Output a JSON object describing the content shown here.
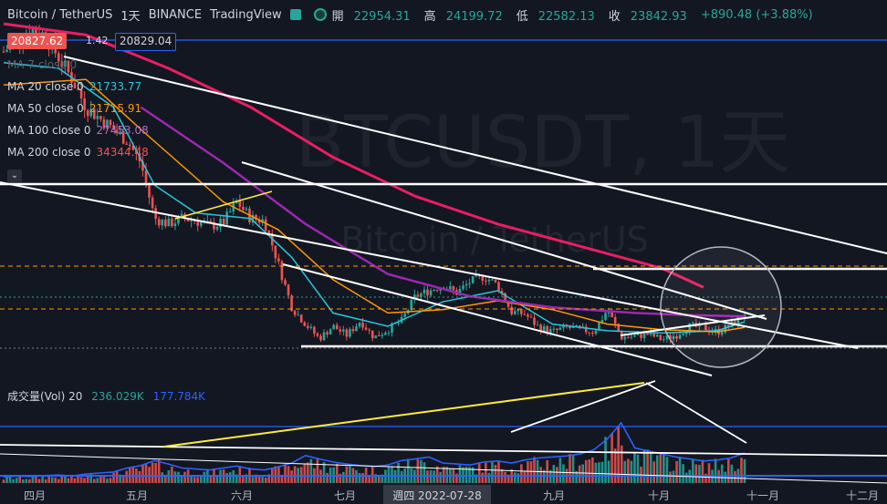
{
  "header": {
    "symbol": "Bitcoin / TetherUS",
    "interval": "1天",
    "exchange": "BINANCE",
    "platform": "TradingView",
    "open_label": "開",
    "open": "22954.31",
    "high_label": "高",
    "high": "24199.72",
    "low_label": "低",
    "low": "22582.13",
    "close_label": "收",
    "close": "23842.93",
    "change": "+890.48 (+3.88%)"
  },
  "badges": {
    "bid": "20827.62",
    "spread": "1.42",
    "ask": "20829.04"
  },
  "indicators": [
    {
      "label": "MA 7 close 0",
      "value": "",
      "color": "#26a69a"
    },
    {
      "label": "MA 20 close 0",
      "value": "21733.77",
      "color": "#26c6da"
    },
    {
      "label": "MA 50 close 0",
      "value": "21715.91",
      "color": "#ff9800"
    },
    {
      "label": "MA 100 close 0",
      "value": "27453.08",
      "color": "#9c27b0"
    },
    {
      "label": "MA 200 close 0",
      "value": "34344.48",
      "color": "#e91e63"
    }
  ],
  "volume": {
    "label": "成交量(Vol) 20",
    "value1": "236.029K",
    "value2": "177.784K"
  },
  "watermark": {
    "big": "BTCUSDT, 1天",
    "small": "Bitcoin / TetherUS"
  },
  "crosshair_date": "週四 2022-07-28",
  "colors": {
    "background": "#131722",
    "up": "#26a69a",
    "down": "#ef5350",
    "ma20": "#26c6da",
    "ma50": "#ff9800",
    "ma100": "#9c27b0",
    "ma200": "#e91e63",
    "vol_ma": "#2962ff",
    "drawing": "#ffffff",
    "trend_yellow": "#ffeb3b"
  },
  "icons": [
    "eye-icon",
    "status-dot-icon"
  ],
  "chart_data": {
    "type": "candlestick",
    "symbol": "BTCUSDT",
    "interval": "1D",
    "x_ticks": [
      "四月",
      "五月",
      "六月",
      "七月",
      "週四 2022-07-28",
      "九月",
      "十月",
      "十一月",
      "十二月"
    ],
    "price_points": [
      [
        0,
        45000
      ],
      [
        1,
        46000
      ],
      [
        2,
        47000
      ],
      [
        3,
        46500
      ],
      [
        4,
        44500
      ],
      [
        5,
        42500
      ],
      [
        6,
        40000
      ],
      [
        7,
        39000
      ],
      [
        8,
        38000
      ],
      [
        9,
        37000
      ],
      [
        10,
        35000
      ],
      [
        11,
        30000
      ],
      [
        12,
        29500
      ],
      [
        13,
        30000
      ],
      [
        14,
        29800
      ],
      [
        15,
        29300
      ],
      [
        16,
        29600
      ],
      [
        17,
        31500
      ],
      [
        18,
        30000
      ],
      [
        19,
        29800
      ],
      [
        20,
        26000
      ],
      [
        21,
        22000
      ],
      [
        22,
        20500
      ],
      [
        23,
        19200
      ],
      [
        24,
        20300
      ],
      [
        25,
        19500
      ],
      [
        26,
        20800
      ],
      [
        27,
        19300
      ],
      [
        28,
        20000
      ],
      [
        29,
        20800
      ],
      [
        30,
        23000
      ],
      [
        31,
        23500
      ],
      [
        32,
        24000
      ],
      [
        33,
        23300
      ],
      [
        34,
        24300
      ],
      [
        35,
        24800
      ],
      [
        36,
        24000
      ],
      [
        37,
        21600
      ],
      [
        38,
        21400
      ],
      [
        39,
        20200
      ],
      [
        40,
        19800
      ],
      [
        41,
        20200
      ],
      [
        42,
        20000
      ],
      [
        43,
        19800
      ],
      [
        44,
        21800
      ],
      [
        45,
        19300
      ],
      [
        46,
        19400
      ],
      [
        47,
        19600
      ],
      [
        48,
        19100
      ],
      [
        49,
        19500
      ],
      [
        50,
        20300
      ],
      [
        51,
        20200
      ],
      [
        52,
        19800
      ],
      [
        53,
        20400
      ],
      [
        54,
        21500
      ]
    ],
    "ma_series": [
      {
        "name": "MA 20",
        "values": [
          [
            0,
            44000
          ],
          [
            4,
            43500
          ],
          [
            8,
            40000
          ],
          [
            11,
            33000
          ],
          [
            14,
            30500
          ],
          [
            18,
            30000
          ],
          [
            21,
            26500
          ],
          [
            24,
            21500
          ],
          [
            28,
            20300
          ],
          [
            32,
            22500
          ],
          [
            36,
            23500
          ],
          [
            40,
            20500
          ],
          [
            44,
            19900
          ],
          [
            48,
            19700
          ],
          [
            52,
            19900
          ],
          [
            54,
            20700
          ]
        ]
      },
      {
        "name": "MA 50",
        "values": [
          [
            0,
            42000
          ],
          [
            6,
            42500
          ],
          [
            10,
            38000
          ],
          [
            16,
            31500
          ],
          [
            20,
            29000
          ],
          [
            24,
            24500
          ],
          [
            28,
            21500
          ],
          [
            32,
            21800
          ],
          [
            36,
            22600
          ],
          [
            40,
            21800
          ],
          [
            44,
            20500
          ],
          [
            48,
            20000
          ],
          [
            52,
            19800
          ],
          [
            54,
            20200
          ]
        ]
      },
      {
        "name": "MA 100",
        "values": [
          [
            10,
            40000
          ],
          [
            16,
            35000
          ],
          [
            22,
            29500
          ],
          [
            28,
            25000
          ],
          [
            34,
            23000
          ],
          [
            40,
            22000
          ],
          [
            46,
            21500
          ],
          [
            50,
            21300
          ],
          [
            54,
            21200
          ]
        ]
      },
      {
        "name": "MA 200",
        "values": [
          [
            0,
            47500
          ],
          [
            6,
            46500
          ],
          [
            12,
            43500
          ],
          [
            18,
            40000
          ],
          [
            24,
            35500
          ],
          [
            30,
            32000
          ],
          [
            36,
            29500
          ],
          [
            42,
            27500
          ],
          [
            48,
            25500
          ],
          [
            51,
            23800
          ]
        ]
      }
    ],
    "volume_profile": [
      12,
      14,
      13,
      15,
      16,
      14,
      18,
      20,
      22,
      30,
      35,
      45,
      38,
      30,
      28,
      26,
      30,
      34,
      28,
      26,
      32,
      40,
      55,
      48,
      42,
      38,
      35,
      33,
      36,
      45,
      48,
      52,
      40,
      38,
      36,
      42,
      44,
      40,
      46,
      50,
      52,
      54,
      58,
      66,
      88,
      120,
      70,
      64,
      58,
      52,
      48,
      44,
      46,
      50,
      60
    ]
  }
}
